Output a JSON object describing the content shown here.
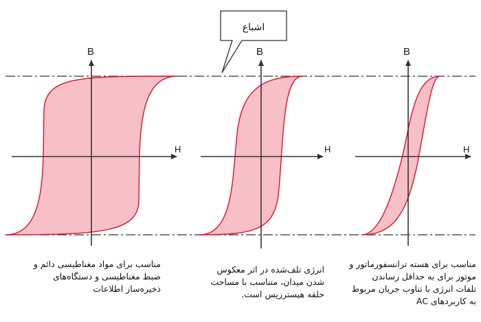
{
  "callout": {
    "text": "اشباع"
  },
  "axes": {
    "b_label": "B",
    "h_label": "H"
  },
  "colors": {
    "loop_fill": "#f6c0c6",
    "loop_stroke": "#e0102a",
    "axis": "#333333",
    "saturation_line": "#333333"
  },
  "panels": [
    {
      "name": "wide-loop",
      "caption": [
        "مناسب برای مواد مغناطیسی دائم و",
        "ضبط مغناطیسی و دستگاه‌های",
        "ذخیره‌ساز اطلاعات"
      ]
    },
    {
      "name": "medium-loop",
      "caption": [
        "انرژی تلف‌شده در اثر معکوس",
        "شدن میدان، متناسب با مساحت",
        "حلقه هیسترزیس است."
      ]
    },
    {
      "name": "narrow-loop",
      "caption": [
        "مناسب برای هسته ترانسفورماتور و",
        "موتور برای به حداقل رساندن",
        "تلفات انرژی با تناوب جریان مربوط",
        "به کاربردهای AC"
      ]
    }
  ]
}
